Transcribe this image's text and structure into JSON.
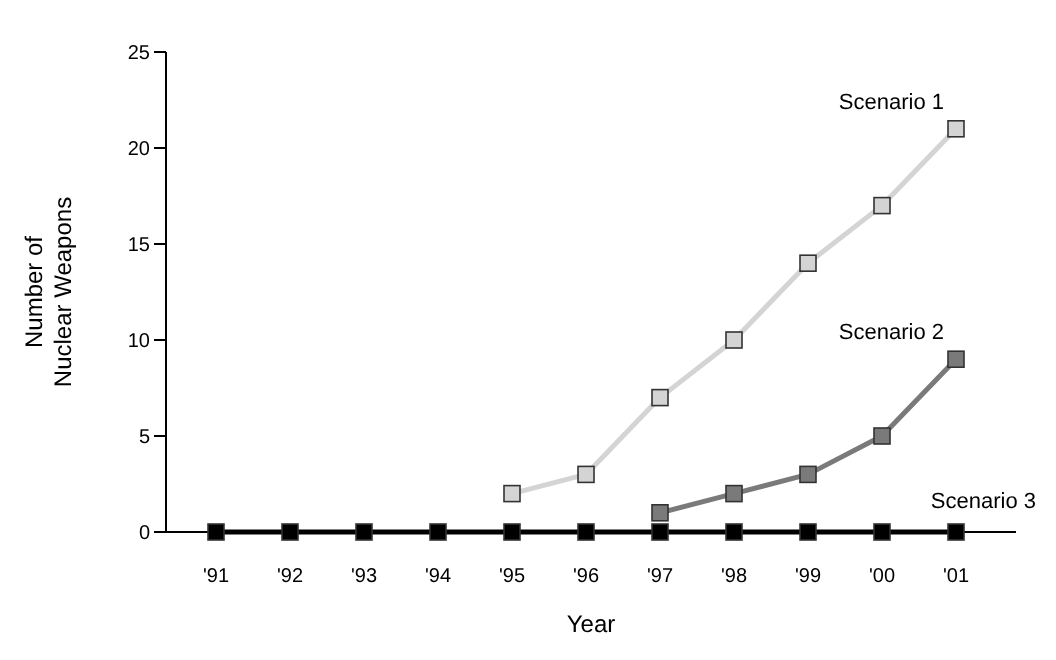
{
  "chart_data": {
    "type": "line",
    "xlabel": "Year",
    "ylabel": "Number of Nuclear Weapons",
    "categories": [
      "'91",
      "'92",
      "'93",
      "'94",
      "'95",
      "'96",
      "'97",
      "'98",
      "'99",
      "'00",
      "'01"
    ],
    "series": [
      {
        "name": "Scenario 1",
        "color": "#d4d4d4",
        "values": [
          null,
          null,
          null,
          null,
          2,
          3,
          7,
          10,
          14,
          17,
          21
        ]
      },
      {
        "name": "Scenario 2",
        "color": "#7a7a7a",
        "values": [
          null,
          null,
          null,
          null,
          null,
          null,
          1,
          2,
          3,
          5,
          9
        ]
      },
      {
        "name": "Scenario 3",
        "color": "#000000",
        "values": [
          0,
          0,
          0,
          0,
          0,
          0,
          0,
          0,
          0,
          0,
          0
        ]
      }
    ],
    "ylim": [
      0,
      25
    ],
    "yticks": [
      0,
      5,
      10,
      15,
      20,
      25
    ],
    "grid": false,
    "legend": false,
    "marker": "square",
    "line_style": "solid"
  }
}
